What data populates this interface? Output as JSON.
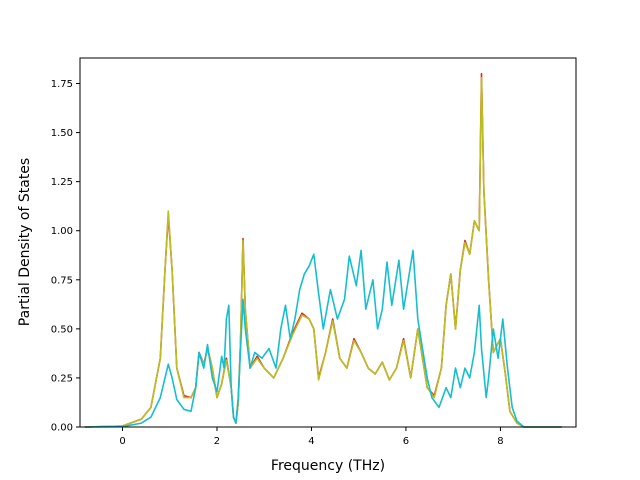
{
  "chart_data": {
    "type": "line",
    "title": "",
    "xlabel": "Frequency (THz)",
    "ylabel": "Partial Density of States",
    "xlim": [
      -0.9,
      9.6
    ],
    "ylim": [
      0,
      1.88
    ],
    "xticks": [
      0,
      2,
      4,
      6,
      8
    ],
    "xtick_labels": [
      "0",
      "2",
      "4",
      "6",
      "8"
    ],
    "yticks": [
      0,
      0.25,
      0.5,
      0.75,
      1.0,
      1.25,
      1.5,
      1.75
    ],
    "ytick_labels": [
      "0.00",
      "0.25",
      "0.50",
      "0.75",
      "1.00",
      "1.25",
      "1.50",
      "1.75"
    ],
    "grid": false,
    "legend": "none",
    "series": [
      {
        "color": "#d62728",
        "points": [
          [
            -0.8,
            0
          ],
          [
            0,
            0.005
          ],
          [
            0.4,
            0.04
          ],
          [
            0.6,
            0.1
          ],
          [
            0.8,
            0.35
          ],
          [
            0.9,
            0.8
          ],
          [
            0.97,
            1.08
          ],
          [
            1.05,
            0.8
          ],
          [
            1.15,
            0.3
          ],
          [
            1.3,
            0.16
          ],
          [
            1.45,
            0.15
          ],
          [
            1.55,
            0.2
          ],
          [
            1.62,
            0.38
          ],
          [
            1.72,
            0.32
          ],
          [
            1.8,
            0.4
          ],
          [
            1.9,
            0.3
          ],
          [
            2.0,
            0.15
          ],
          [
            2.1,
            0.22
          ],
          [
            2.2,
            0.35
          ],
          [
            2.3,
            0.2
          ],
          [
            2.35,
            0.05
          ],
          [
            2.4,
            0.02
          ],
          [
            2.45,
            0.12
          ],
          [
            2.5,
            0.45
          ],
          [
            2.55,
            0.96
          ],
          [
            2.6,
            0.6
          ],
          [
            2.7,
            0.3
          ],
          [
            2.85,
            0.36
          ],
          [
            3.0,
            0.3
          ],
          [
            3.2,
            0.25
          ],
          [
            3.4,
            0.35
          ],
          [
            3.6,
            0.48
          ],
          [
            3.8,
            0.58
          ],
          [
            3.95,
            0.55
          ],
          [
            4.05,
            0.5
          ],
          [
            4.15,
            0.25
          ],
          [
            4.3,
            0.38
          ],
          [
            4.45,
            0.55
          ],
          [
            4.6,
            0.35
          ],
          [
            4.75,
            0.3
          ],
          [
            4.9,
            0.45
          ],
          [
            5.05,
            0.38
          ],
          [
            5.2,
            0.3
          ],
          [
            5.35,
            0.27
          ],
          [
            5.5,
            0.33
          ],
          [
            5.65,
            0.24
          ],
          [
            5.8,
            0.3
          ],
          [
            5.95,
            0.45
          ],
          [
            6.1,
            0.25
          ],
          [
            6.25,
            0.5
          ],
          [
            6.35,
            0.35
          ],
          [
            6.45,
            0.2
          ],
          [
            6.6,
            0.16
          ],
          [
            6.75,
            0.3
          ],
          [
            6.85,
            0.62
          ],
          [
            6.95,
            0.78
          ],
          [
            7.05,
            0.5
          ],
          [
            7.15,
            0.8
          ],
          [
            7.25,
            0.95
          ],
          [
            7.35,
            0.88
          ],
          [
            7.45,
            1.05
          ],
          [
            7.55,
            1.0
          ],
          [
            7.6,
            1.8
          ],
          [
            7.65,
            1.2
          ],
          [
            7.75,
            0.75
          ],
          [
            7.85,
            0.38
          ],
          [
            8.0,
            0.45
          ],
          [
            8.1,
            0.28
          ],
          [
            8.2,
            0.08
          ],
          [
            8.35,
            0.02
          ],
          [
            8.5,
            0
          ],
          [
            9.3,
            0
          ]
        ]
      },
      {
        "color": "#bcbd22",
        "points": [
          [
            -0.8,
            0
          ],
          [
            0,
            0.005
          ],
          [
            0.4,
            0.04
          ],
          [
            0.6,
            0.1
          ],
          [
            0.8,
            0.35
          ],
          [
            0.9,
            0.8
          ],
          [
            0.97,
            1.1
          ],
          [
            1.05,
            0.8
          ],
          [
            1.15,
            0.3
          ],
          [
            1.3,
            0.15
          ],
          [
            1.45,
            0.15
          ],
          [
            1.55,
            0.2
          ],
          [
            1.62,
            0.37
          ],
          [
            1.72,
            0.32
          ],
          [
            1.8,
            0.4
          ],
          [
            1.9,
            0.3
          ],
          [
            2.0,
            0.15
          ],
          [
            2.1,
            0.22
          ],
          [
            2.2,
            0.34
          ],
          [
            2.3,
            0.2
          ],
          [
            2.35,
            0.05
          ],
          [
            2.4,
            0.02
          ],
          [
            2.45,
            0.12
          ],
          [
            2.5,
            0.45
          ],
          [
            2.55,
            0.95
          ],
          [
            2.6,
            0.6
          ],
          [
            2.7,
            0.3
          ],
          [
            2.85,
            0.35
          ],
          [
            3.0,
            0.3
          ],
          [
            3.2,
            0.25
          ],
          [
            3.4,
            0.35
          ],
          [
            3.6,
            0.47
          ],
          [
            3.8,
            0.57
          ],
          [
            3.95,
            0.55
          ],
          [
            4.05,
            0.5
          ],
          [
            4.15,
            0.24
          ],
          [
            4.3,
            0.38
          ],
          [
            4.45,
            0.54
          ],
          [
            4.6,
            0.35
          ],
          [
            4.75,
            0.3
          ],
          [
            4.9,
            0.44
          ],
          [
            5.05,
            0.38
          ],
          [
            5.2,
            0.3
          ],
          [
            5.35,
            0.27
          ],
          [
            5.5,
            0.33
          ],
          [
            5.65,
            0.24
          ],
          [
            5.8,
            0.3
          ],
          [
            5.95,
            0.44
          ],
          [
            6.1,
            0.25
          ],
          [
            6.25,
            0.5
          ],
          [
            6.35,
            0.35
          ],
          [
            6.45,
            0.2
          ],
          [
            6.6,
            0.15
          ],
          [
            6.75,
            0.3
          ],
          [
            6.85,
            0.62
          ],
          [
            6.95,
            0.78
          ],
          [
            7.05,
            0.5
          ],
          [
            7.15,
            0.8
          ],
          [
            7.25,
            0.94
          ],
          [
            7.35,
            0.88
          ],
          [
            7.45,
            1.05
          ],
          [
            7.55,
            1.0
          ],
          [
            7.6,
            1.78
          ],
          [
            7.65,
            1.2
          ],
          [
            7.75,
            0.75
          ],
          [
            7.85,
            0.38
          ],
          [
            8.0,
            0.45
          ],
          [
            8.1,
            0.28
          ],
          [
            8.2,
            0.08
          ],
          [
            8.35,
            0.02
          ],
          [
            8.5,
            0
          ],
          [
            9.3,
            0
          ]
        ]
      },
      {
        "color": "#17becf",
        "points": [
          [
            -0.8,
            0
          ],
          [
            0,
            0.002
          ],
          [
            0.4,
            0.02
          ],
          [
            0.6,
            0.05
          ],
          [
            0.8,
            0.15
          ],
          [
            0.9,
            0.25
          ],
          [
            0.97,
            0.32
          ],
          [
            1.05,
            0.25
          ],
          [
            1.15,
            0.14
          ],
          [
            1.3,
            0.09
          ],
          [
            1.45,
            0.08
          ],
          [
            1.55,
            0.2
          ],
          [
            1.62,
            0.38
          ],
          [
            1.72,
            0.3
          ],
          [
            1.8,
            0.42
          ],
          [
            1.9,
            0.25
          ],
          [
            2.0,
            0.18
          ],
          [
            2.1,
            0.36
          ],
          [
            2.15,
            0.3
          ],
          [
            2.2,
            0.55
          ],
          [
            2.25,
            0.62
          ],
          [
            2.3,
            0.2
          ],
          [
            2.35,
            0.05
          ],
          [
            2.4,
            0.02
          ],
          [
            2.45,
            0.15
          ],
          [
            2.5,
            0.4
          ],
          [
            2.55,
            0.65
          ],
          [
            2.6,
            0.5
          ],
          [
            2.7,
            0.3
          ],
          [
            2.8,
            0.38
          ],
          [
            2.95,
            0.35
          ],
          [
            3.1,
            0.4
          ],
          [
            3.25,
            0.3
          ],
          [
            3.35,
            0.5
          ],
          [
            3.45,
            0.62
          ],
          [
            3.55,
            0.45
          ],
          [
            3.65,
            0.55
          ],
          [
            3.75,
            0.7
          ],
          [
            3.85,
            0.78
          ],
          [
            3.95,
            0.82
          ],
          [
            4.05,
            0.88
          ],
          [
            4.15,
            0.68
          ],
          [
            4.25,
            0.5
          ],
          [
            4.4,
            0.7
          ],
          [
            4.55,
            0.55
          ],
          [
            4.7,
            0.65
          ],
          [
            4.8,
            0.87
          ],
          [
            4.95,
            0.72
          ],
          [
            5.05,
            0.9
          ],
          [
            5.15,
            0.6
          ],
          [
            5.3,
            0.75
          ],
          [
            5.4,
            0.5
          ],
          [
            5.5,
            0.6
          ],
          [
            5.6,
            0.84
          ],
          [
            5.7,
            0.62
          ],
          [
            5.85,
            0.85
          ],
          [
            5.95,
            0.6
          ],
          [
            6.05,
            0.75
          ],
          [
            6.15,
            0.9
          ],
          [
            6.25,
            0.55
          ],
          [
            6.35,
            0.4
          ],
          [
            6.45,
            0.25
          ],
          [
            6.55,
            0.15
          ],
          [
            6.7,
            0.1
          ],
          [
            6.85,
            0.2
          ],
          [
            6.95,
            0.15
          ],
          [
            7.05,
            0.3
          ],
          [
            7.15,
            0.2
          ],
          [
            7.25,
            0.3
          ],
          [
            7.35,
            0.25
          ],
          [
            7.45,
            0.38
          ],
          [
            7.55,
            0.62
          ],
          [
            7.6,
            0.4
          ],
          [
            7.7,
            0.15
          ],
          [
            7.75,
            0.25
          ],
          [
            7.85,
            0.5
          ],
          [
            7.95,
            0.35
          ],
          [
            8.05,
            0.55
          ],
          [
            8.15,
            0.3
          ],
          [
            8.25,
            0.1
          ],
          [
            8.35,
            0.03
          ],
          [
            8.5,
            0
          ],
          [
            9.3,
            0
          ]
        ]
      }
    ]
  }
}
